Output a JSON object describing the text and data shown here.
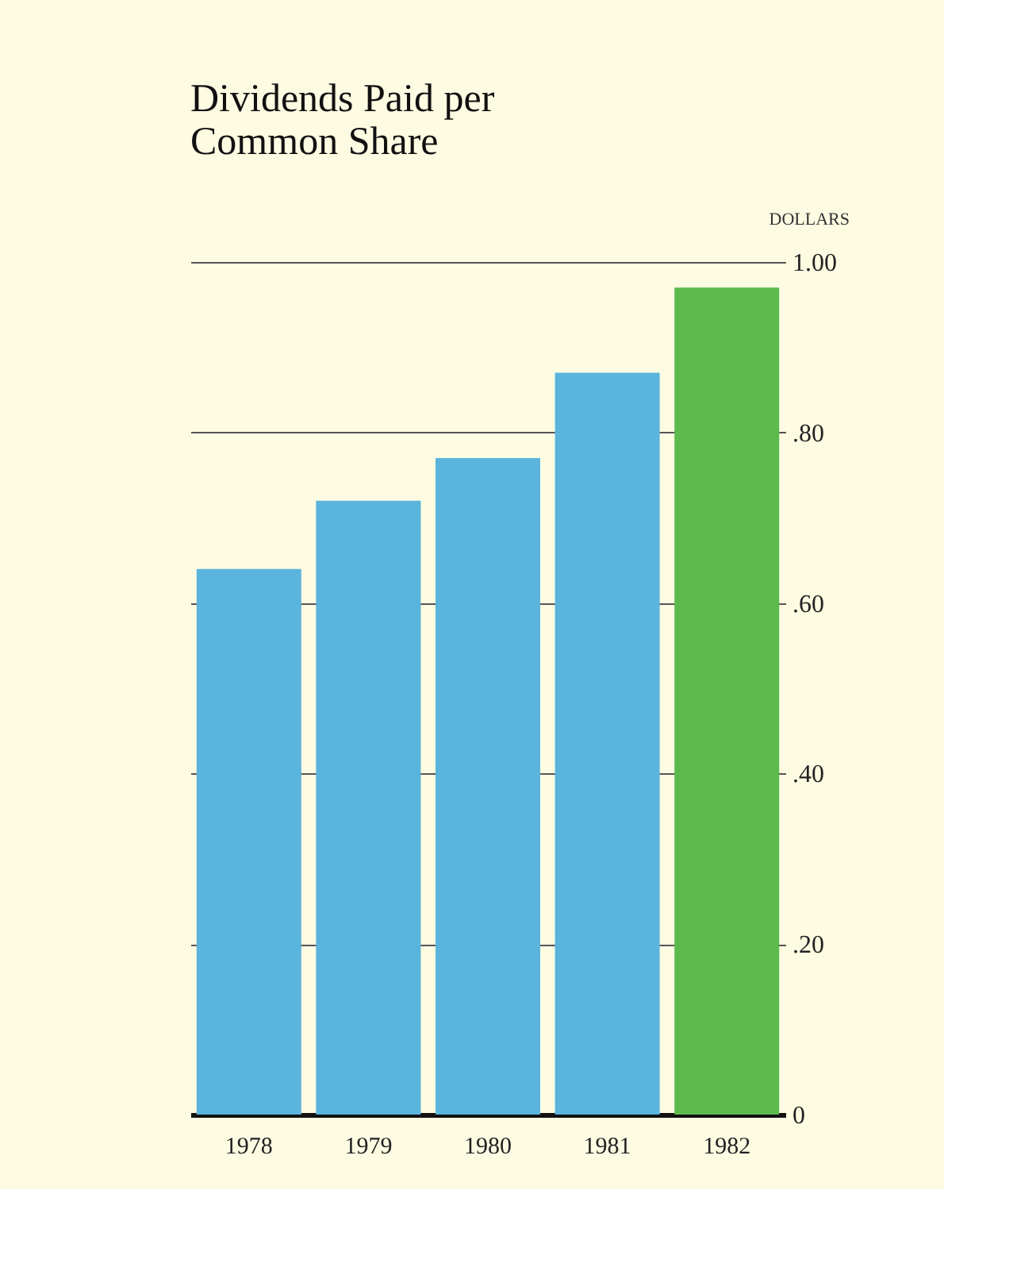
{
  "chart_data": {
    "type": "bar",
    "title": [
      "Dividends Paid per",
      "Common Share"
    ],
    "ylabel": "DOLLARS",
    "categories": [
      "1978",
      "1979",
      "1980",
      "1981",
      "1982"
    ],
    "values": [
      0.64,
      0.72,
      0.77,
      0.87,
      0.97
    ],
    "colors": [
      "#5ab4dc",
      "#5ab4dc",
      "#5ab4dc",
      "#5ab4dc",
      "#5cba4c"
    ],
    "ylim": [
      0,
      1.0
    ],
    "yticks": [
      0,
      {
        "value": 0.2,
        "label": ".20"
      },
      {
        "value": 0.4,
        "label": ".40"
      },
      {
        "value": 0.6,
        "label": ".60"
      },
      {
        "value": 0.8,
        "label": ".80"
      },
      {
        "value": 1.0,
        "label": "1.00"
      }
    ],
    "grid": "y"
  }
}
